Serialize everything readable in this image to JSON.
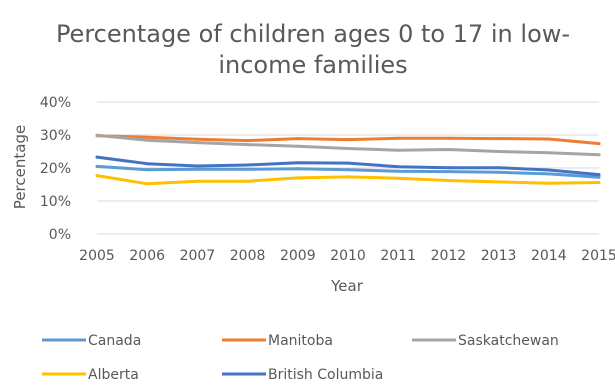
{
  "chart_data": {
    "type": "line",
    "title": "Percentage of children ages 0 to 17 in low-income families",
    "title_lines": [
      "Percentage of children ages 0 to 17 in low-",
      "income families"
    ],
    "xlabel": "Year",
    "ylabel": "Percentage",
    "x": [
      "2005",
      "2006",
      "2007",
      "2008",
      "2009",
      "2010",
      "2011",
      "2012",
      "2013",
      "2014",
      "2015"
    ],
    "yticks": [
      "0%",
      "10%",
      "20%",
      "30%",
      "40%"
    ],
    "ylim": [
      0,
      40
    ],
    "grid": true,
    "legend_position": "bottom",
    "series": [
      {
        "name": "Canada",
        "color": "#5B9BD5",
        "values": [
          20.5,
          19.5,
          19.6,
          19.6,
          19.8,
          19.5,
          19.0,
          18.9,
          18.7,
          18.2,
          17.2
        ]
      },
      {
        "name": "Manitoba",
        "color": "#ED7D31",
        "values": [
          29.8,
          29.3,
          28.7,
          28.3,
          28.9,
          28.6,
          29.0,
          29.0,
          28.9,
          28.8,
          27.4
        ]
      },
      {
        "name": "Saskatchewan",
        "color": "#A5A5A5",
        "values": [
          29.9,
          28.4,
          27.7,
          27.1,
          26.6,
          25.9,
          25.4,
          25.6,
          25.0,
          24.6,
          24.0
        ]
      },
      {
        "name": "Alberta",
        "color": "#FFC000",
        "values": [
          17.7,
          15.2,
          16.0,
          16.0,
          17.0,
          17.3,
          16.9,
          16.2,
          15.8,
          15.4,
          15.6
        ]
      },
      {
        "name": "British Columbia",
        "color": "#4472C4",
        "values": [
          23.3,
          21.3,
          20.6,
          20.9,
          21.6,
          21.5,
          20.4,
          20.1,
          20.1,
          19.4,
          18.0
        ]
      }
    ]
  }
}
